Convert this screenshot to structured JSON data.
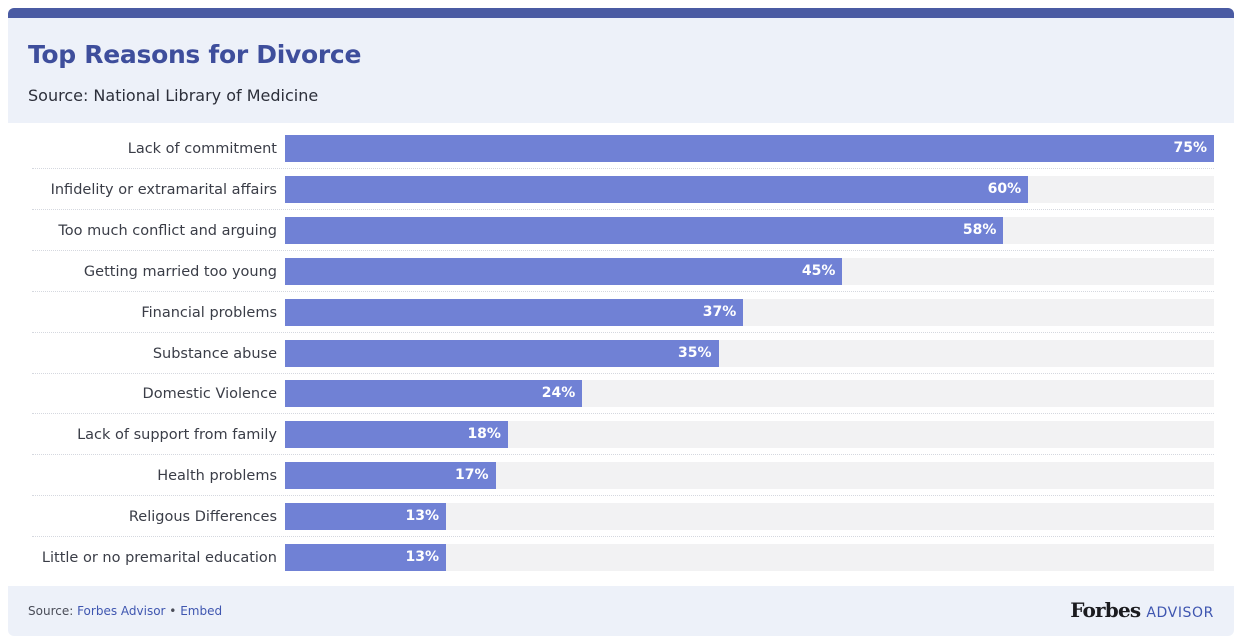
{
  "header": {
    "title": "Top Reasons for Divorce",
    "subtitle": "Source: National Library of Medicine"
  },
  "colors": {
    "accent": "#3e4e9c",
    "bar": "#7081d5",
    "track": "#f2f2f3",
    "header_bg": "#edf1f9"
  },
  "chart_data": {
    "type": "bar",
    "orientation": "horizontal",
    "categories": [
      "Lack of commitment",
      "Infidelity or extramarital affairs",
      "Too much conflict and arguing",
      "Getting married too young",
      "Financial problems",
      "Substance abuse",
      "Domestic Violence",
      "Lack of support from family",
      "Health problems",
      "Religous Differences",
      "Little or no premarital education"
    ],
    "values": [
      75,
      60,
      58,
      45,
      37,
      35,
      24,
      18,
      17,
      13,
      13
    ],
    "value_labels": [
      "75%",
      "60%",
      "58%",
      "45%",
      "37%",
      "35%",
      "24%",
      "18%",
      "17%",
      "13%",
      "13%"
    ],
    "xlim": [
      0,
      75
    ],
    "grid": false,
    "title": "Top Reasons for Divorce",
    "subtitle": "Source: National Library of Medicine"
  },
  "footer": {
    "source_prefix": "Source: ",
    "source_link": "Forbes Advisor",
    "separator": " • ",
    "embed_link": "Embed",
    "brand_name": "Forbes",
    "brand_suffix": "ADVISOR"
  }
}
